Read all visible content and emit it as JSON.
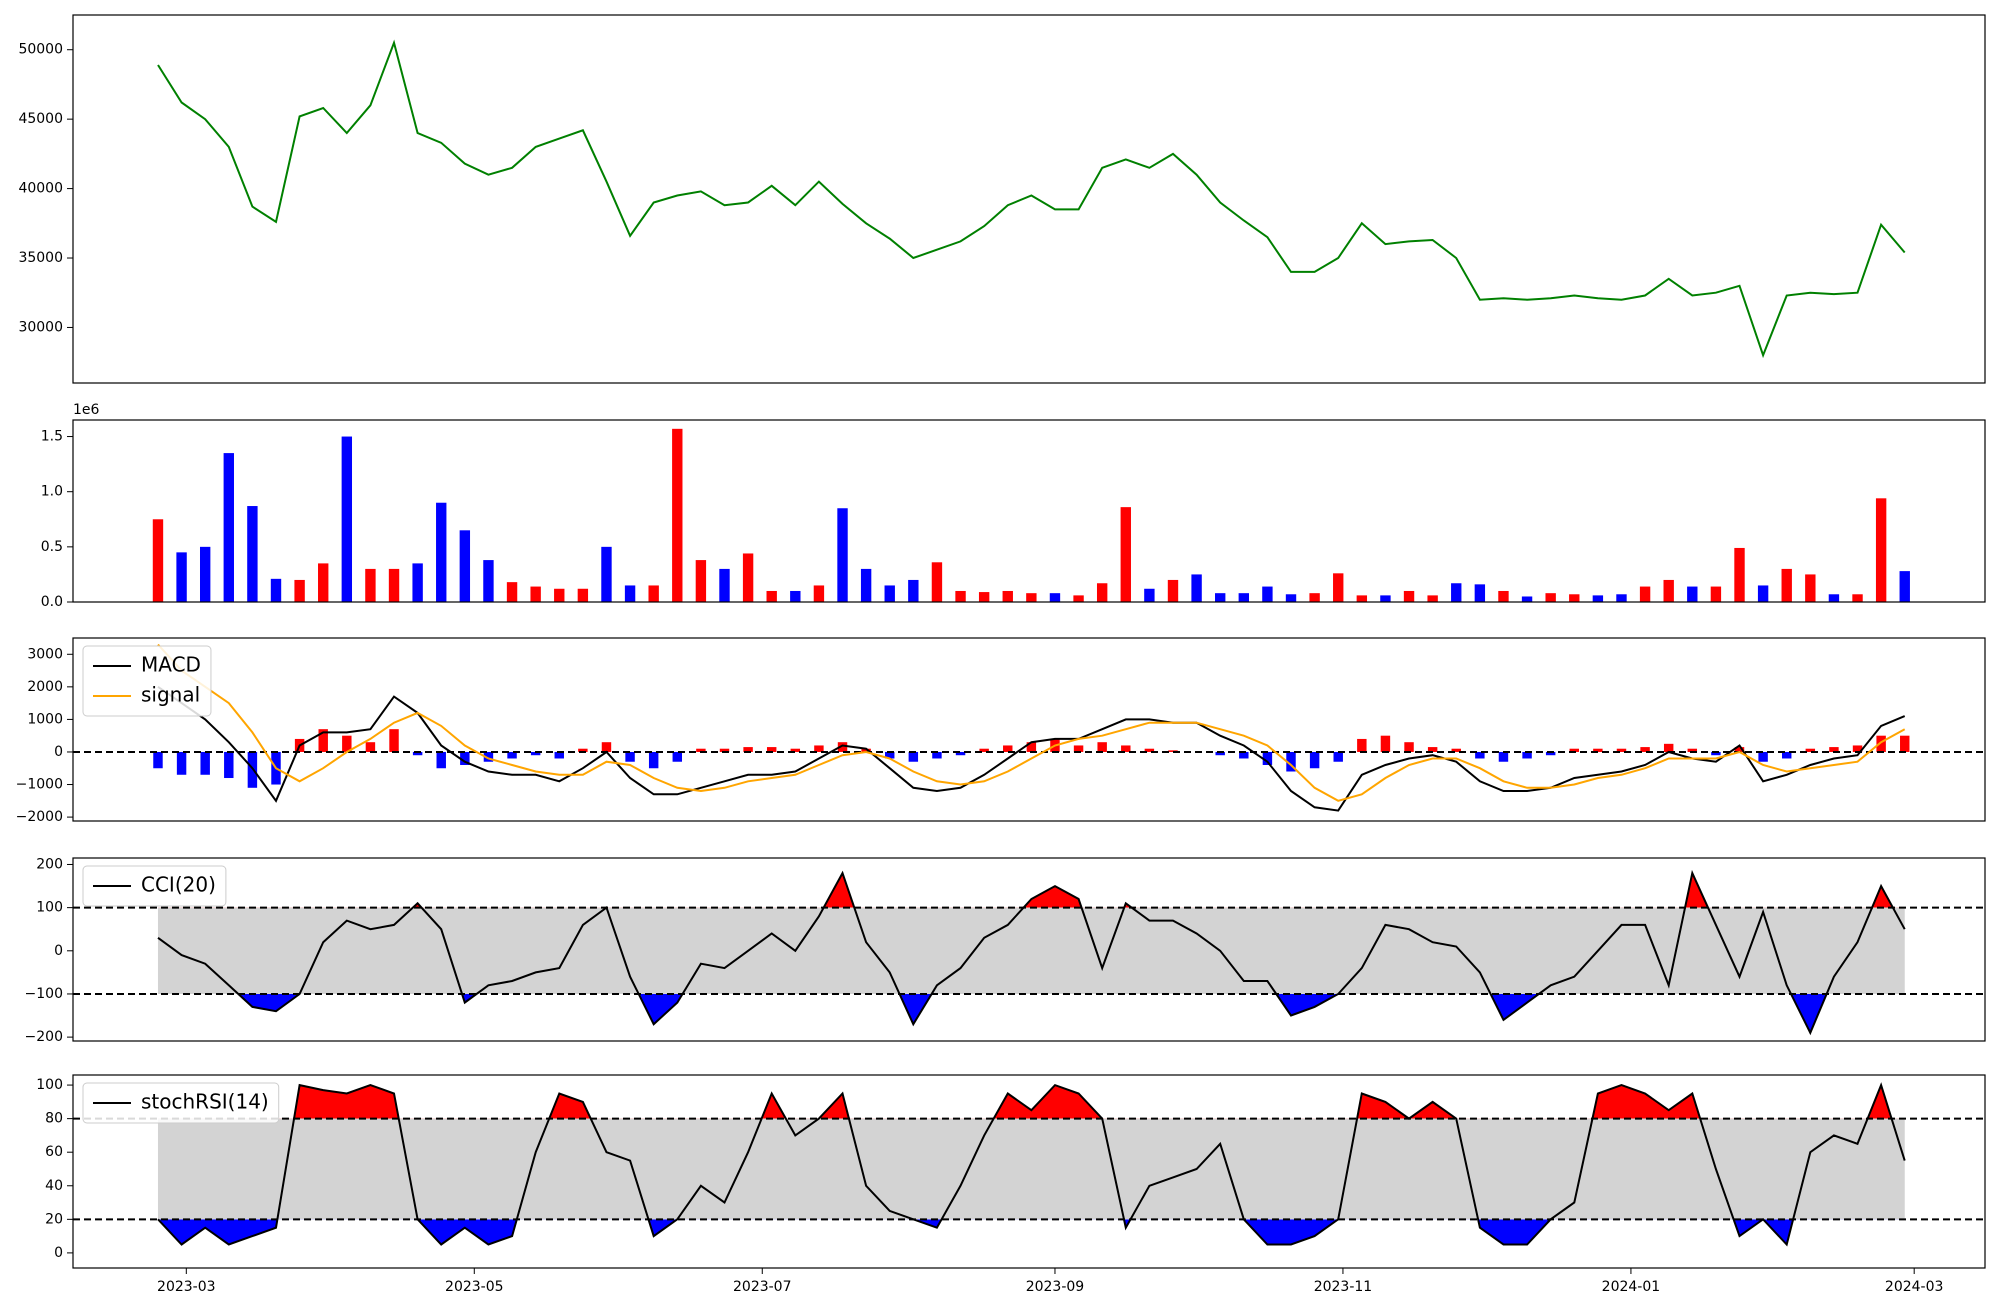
{
  "chart_data": [
    {
      "type": "line",
      "series": [
        {
          "color": "green",
          "values": [
            48900,
            46200,
            45000,
            43000,
            38700,
            37600,
            45200,
            45800,
            44000,
            46000,
            50500,
            44000,
            43300,
            41800,
            41000,
            41500,
            43000,
            43600,
            44200,
            40500,
            36600,
            39000,
            39500,
            39800,
            38800,
            39000,
            40200,
            38800,
            40500,
            38900,
            37500,
            36400,
            35000,
            35600,
            36200,
            37300,
            38800,
            39500,
            38500,
            38500,
            41500,
            42100,
            41500,
            42500,
            41000,
            39000,
            37700,
            36500,
            34000,
            34000,
            35000,
            37500,
            36000,
            36200,
            36300,
            35000,
            32000,
            32100,
            32000,
            32100,
            32300,
            32100,
            32000,
            32300,
            33500,
            32300,
            32500,
            33000,
            28000,
            32300,
            32500,
            32400,
            32500,
            37400,
            35400
          ]
        }
      ],
      "ylim": [
        26000,
        52500
      ],
      "yticks": [
        30000,
        35000,
        40000,
        45000,
        50000
      ]
    },
    {
      "type": "bar",
      "values": [
        0.75,
        0.45,
        0.5,
        1.35,
        0.87,
        0.21,
        0.2,
        0.35,
        1.5,
        0.3,
        0.3,
        0.35,
        0.9,
        0.65,
        0.38,
        0.18,
        0.14,
        0.12,
        0.12,
        0.5,
        0.15,
        0.15,
        1.57,
        0.38,
        0.3,
        0.44,
        0.1,
        0.1,
        0.15,
        0.85,
        0.3,
        0.15,
        0.2,
        0.36,
        0.1,
        0.09,
        0.1,
        0.08,
        0.08,
        0.06,
        0.17,
        0.86,
        0.12,
        0.2,
        0.25,
        0.08,
        0.08,
        0.14,
        0.07,
        0.08,
        0.26,
        0.06,
        0.06,
        0.1,
        0.06,
        0.17,
        0.16,
        0.1,
        0.05,
        0.08,
        0.07,
        0.06,
        0.07,
        0.14,
        0.2,
        0.14,
        0.14,
        0.49,
        0.15,
        0.3,
        0.25,
        0.07,
        0.07,
        0.94,
        0.28
      ],
      "up_color": "red",
      "down_color": "blue",
      "y_offset_label": "1e6",
      "ylim": [
        0,
        1.65
      ],
      "yticks": [
        {
          "value": 0,
          "label": "0.0"
        },
        0.5,
        {
          "value": 1,
          "label": "1.0"
        },
        1.5
      ]
    },
    {
      "type": "macd",
      "series": [
        {
          "name": "MACD",
          "color": "black",
          "values": [
            2000,
            1500,
            1000,
            300,
            -500,
            -1500,
            200,
            600,
            600,
            700,
            1700,
            1200,
            200,
            -300,
            -600,
            -700,
            -700,
            -900,
            -500,
            0,
            -800,
            -1300,
            -1300,
            -1100,
            -900,
            -700,
            -700,
            -600,
            -200,
            200,
            100,
            -500,
            -1100,
            -1200,
            -1100,
            -700,
            -200,
            300,
            400,
            400,
            700,
            1000,
            1000,
            900,
            900,
            500,
            200,
            -300,
            -1200,
            -1700,
            -1800,
            -700,
            -400,
            -200,
            -100,
            -300,
            -900,
            -1200,
            -1200,
            -1100,
            -800,
            -700,
            -600,
            -400,
            0,
            -200,
            -300,
            200,
            -900,
            -700,
            -400,
            -200,
            -100,
            800,
            1100
          ]
        },
        {
          "name": "signal",
          "color": "orange",
          "values": [
            3300,
            2500,
            2000,
            1500,
            600,
            -500,
            -900,
            -500,
            0,
            400,
            900,
            1200,
            800,
            200,
            -200,
            -400,
            -600,
            -700,
            -700,
            -300,
            -400,
            -800,
            -1100,
            -1200,
            -1100,
            -900,
            -800,
            -700,
            -400,
            -100,
            0,
            -200,
            -600,
            -900,
            -1000,
            -900,
            -600,
            -200,
            200,
            400,
            500,
            700,
            900,
            900,
            900,
            700,
            500,
            200,
            -400,
            -1100,
            -1500,
            -1300,
            -800,
            -400,
            -200,
            -200,
            -500,
            -900,
            -1100,
            -1100,
            -1000,
            -800,
            -700,
            -500,
            -200,
            -200,
            -200,
            0,
            -400,
            -600,
            -500,
            -400,
            -300,
            300,
            700
          ]
        }
      ],
      "histogram": {
        "values": [
          -500,
          -700,
          -700,
          -800,
          -1100,
          -1000,
          400,
          700,
          500,
          300,
          700,
          -100,
          -500,
          -400,
          -300,
          -200,
          -100,
          -200,
          100,
          300,
          -300,
          -500,
          -300,
          100,
          100,
          150,
          150,
          100,
          200,
          300,
          100,
          -200,
          -300,
          -200,
          -100,
          100,
          200,
          300,
          400,
          200,
          300,
          200,
          100,
          50,
          0,
          -100,
          -200,
          -400,
          -600,
          -500,
          -300,
          400,
          500,
          300,
          150,
          100,
          -200,
          -300,
          -200,
          -100,
          100,
          100,
          100,
          150,
          250,
          100,
          -100,
          150,
          -300,
          -200,
          100,
          150,
          200,
          500,
          500
        ],
        "up_color": "red",
        "down_color": "blue"
      },
      "hlines": [
        0
      ],
      "ylim": [
        -2120,
        3500
      ],
      "yticks": [
        {
          "value": -2000,
          "label": "−2000"
        },
        {
          "value": -1000,
          "label": "−1000"
        },
        0,
        1000,
        2000,
        3000
      ]
    },
    {
      "type": "oscillator",
      "series": [
        {
          "name": "CCI(20)",
          "color": "black",
          "values": [
            30,
            -10,
            -30,
            -80,
            -130,
            -140,
            -100,
            20,
            70,
            50,
            60,
            110,
            50,
            -120,
            -80,
            -70,
            -50,
            -40,
            60,
            100,
            -60,
            -170,
            -120,
            -30,
            -40,
            0,
            40,
            0,
            80,
            180,
            20,
            -50,
            -170,
            -80,
            -40,
            30,
            60,
            120,
            150,
            120,
            -40,
            110,
            70,
            70,
            40,
            0,
            -70,
            -70,
            -150,
            -130,
            -100,
            -40,
            60,
            50,
            20,
            10,
            -50,
            -160,
            -120,
            -80,
            -60,
            0,
            60,
            60,
            -80,
            180,
            60,
            -60,
            90,
            -80,
            -190,
            -60,
            20,
            150,
            50
          ]
        }
      ],
      "thresholds": [
        -100,
        100
      ],
      "band_color": "lightgrey",
      "upper_fill": "red",
      "lower_fill": "blue",
      "ylim": [
        -209,
        215
      ],
      "yticks": [
        {
          "value": -200,
          "label": "−200"
        },
        {
          "value": -100,
          "label": "−100"
        },
        0,
        100,
        200
      ]
    },
    {
      "type": "oscillator",
      "series": [
        {
          "name": "stochRSI(14)",
          "color": "black",
          "values": [
            20,
            5,
            15,
            5,
            10,
            15,
            100,
            97,
            95,
            100,
            95,
            20,
            5,
            15,
            5,
            10,
            60,
            95,
            90,
            60,
            55,
            10,
            20,
            40,
            30,
            60,
            95,
            70,
            80,
            95,
            40,
            25,
            20,
            15,
            40,
            70,
            95,
            85,
            100,
            95,
            80,
            15,
            40,
            45,
            50,
            65,
            20,
            5,
            5,
            10,
            20,
            95,
            90,
            80,
            90,
            80,
            15,
            5,
            5,
            20,
            30,
            95,
            100,
            95,
            85,
            95,
            50,
            10,
            20,
            5,
            60,
            70,
            65,
            100,
            55
          ]
        }
      ],
      "thresholds": [
        20,
        80
      ],
      "band_color": "lightgrey",
      "upper_fill": "red",
      "lower_fill": "blue",
      "ylim": [
        -9,
        106
      ],
      "yticks": [
        0,
        20,
        40,
        60,
        80,
        100
      ],
      "x": [
        -6,
        -1,
        4,
        9,
        14,
        19,
        24,
        29,
        34,
        39,
        44,
        49,
        54,
        59,
        64,
        69,
        74,
        79,
        84,
        89,
        94,
        99,
        104,
        109,
        114,
        119,
        124,
        129,
        134,
        139,
        144,
        149,
        154,
        159,
        164,
        169,
        174,
        179,
        184,
        189,
        194,
        199,
        204,
        209,
        214,
        219,
        224,
        229,
        234,
        239,
        244,
        249,
        254,
        259,
        264,
        269,
        274,
        279,
        284,
        289,
        294,
        299,
        304,
        309,
        314,
        319,
        324,
        329,
        334,
        339,
        344,
        349,
        354,
        359,
        364
      ],
      "xlim": [
        -24,
        381
      ],
      "xticks": [
        {
          "value": 0,
          "label": "2023-03"
        },
        {
          "value": 61,
          "label": "2023-05"
        },
        {
          "value": 122,
          "label": "2023-07"
        },
        {
          "value": 184,
          "label": "2023-09"
        },
        {
          "value": 245,
          "label": "2023-11"
        },
        {
          "value": 306,
          "label": "2024-01"
        },
        {
          "value": 366,
          "label": "2024-03"
        }
      ]
    }
  ]
}
